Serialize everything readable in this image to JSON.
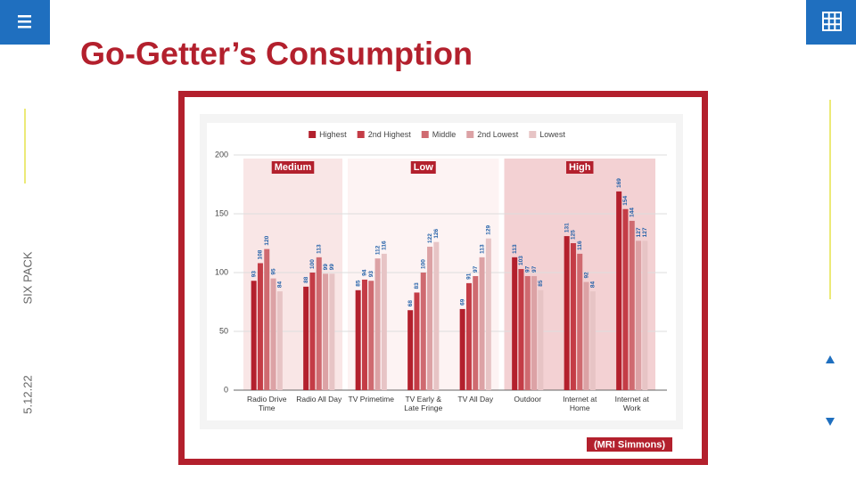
{
  "slide": {
    "title": "Go-Getter’s Consumption",
    "side_label": "SIX PACK",
    "date": "5.12.22",
    "source": "(MRI Simmons)"
  },
  "chart_data": {
    "type": "bar",
    "categories": [
      "Radio Drive Time",
      "Radio All Day",
      "TV Primetime",
      "TV Early & Late Fringe",
      "TV All Day",
      "Outdoor",
      "Internet at Home",
      "Internet at Work"
    ],
    "series": [
      {
        "name": "Highest",
        "color": "#b3202d",
        "values": [
          93,
          88,
          85,
          68,
          69,
          113,
          131,
          169
        ]
      },
      {
        "name": "2nd Highest",
        "color": "#c43c46",
        "values": [
          108,
          100,
          94,
          83,
          91,
          103,
          125,
          154
        ]
      },
      {
        "name": "Middle",
        "color": "#cf6a70",
        "values": [
          120,
          113,
          93,
          100,
          97,
          97,
          116,
          144
        ]
      },
      {
        "name": "2nd Lowest",
        "color": "#dca2a5",
        "values": [
          95,
          99,
          112,
          122,
          113,
          97,
          92,
          127
        ]
      },
      {
        "name": "Lowest",
        "color": "#e7c4c5",
        "values": [
          84,
          99,
          116,
          126,
          129,
          85,
          84,
          127
        ]
      }
    ],
    "groups": [
      {
        "label": "Medium",
        "color": "#f9e6e6",
        "categories": [
          "Radio Drive Time",
          "Radio All Day"
        ]
      },
      {
        "label": "Low",
        "color": "#fdf3f3",
        "categories": [
          "TV Primetime",
          "TV Early & Late Fringe",
          "TV All Day"
        ]
      },
      {
        "label": "High",
        "color": "#f3d1d3",
        "categories": [
          "Outdoor",
          "Internet at Home",
          "Internet at Work"
        ]
      }
    ],
    "ylim": [
      0,
      200
    ],
    "yticks": [
      0,
      50,
      100,
      150,
      200
    ],
    "grid": true,
    "legend": "top",
    "value_label_color": "#2160a8"
  }
}
